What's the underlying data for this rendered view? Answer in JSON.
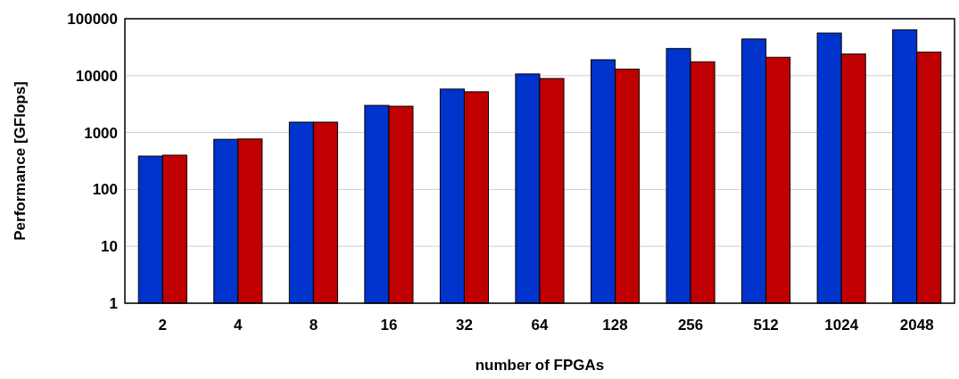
{
  "chart_data": {
    "type": "bar",
    "xlabel": "number of FPGAs",
    "ylabel": "Performance [GFlops]",
    "categories": [
      "2",
      "4",
      "8",
      "16",
      "32",
      "64",
      "128",
      "256",
      "512",
      "1024",
      "2048"
    ],
    "series": [
      {
        "color": "#0033cc",
        "values": [
          385,
          760,
          1520,
          3000,
          5800,
          10700,
          19000,
          30000,
          44000,
          56000,
          64000
        ]
      },
      {
        "color": "#c00000",
        "values": [
          400,
          770,
          1520,
          2900,
          5200,
          8900,
          13000,
          17500,
          21000,
          24000,
          26000
        ]
      }
    ],
    "log": true,
    "ylim": [
      1,
      100000
    ],
    "yticks": [
      1,
      10,
      100,
      1000,
      10000,
      100000
    ],
    "grid": "y"
  }
}
